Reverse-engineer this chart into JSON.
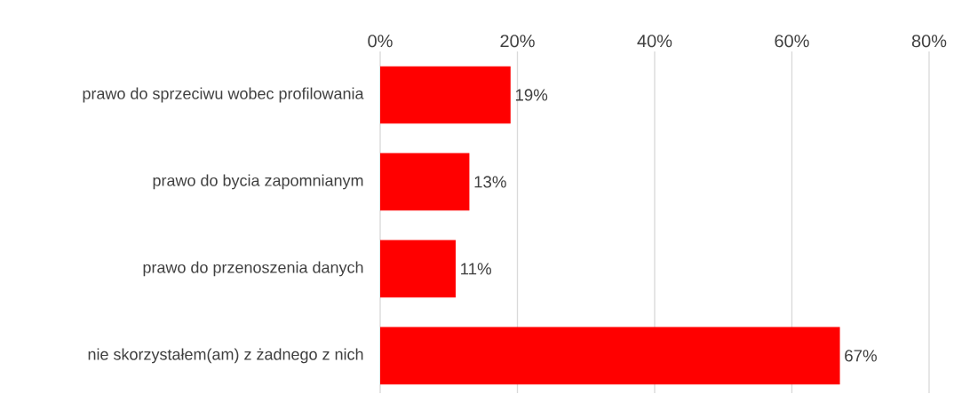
{
  "chart_data": {
    "type": "bar",
    "orientation": "horizontal",
    "categories": [
      "prawo do sprzeciwu wobec profilowania",
      "prawo do bycia zapomnianym",
      "prawo do przenoszenia danych",
      "nie skorzystałem(am) z żadnego z nich"
    ],
    "values": [
      19,
      13,
      11,
      67
    ],
    "value_labels": [
      "19%",
      "13%",
      "11%",
      "67%"
    ],
    "color": "#ff0000",
    "xlim": [
      0,
      80
    ],
    "xticks": [
      {
        "value": 0,
        "label": "0%"
      },
      {
        "value": 20,
        "label": "20%"
      },
      {
        "value": 40,
        "label": "40%"
      },
      {
        "value": 60,
        "label": "60%"
      },
      {
        "value": 80,
        "label": "80%"
      }
    ],
    "grid": "x"
  }
}
